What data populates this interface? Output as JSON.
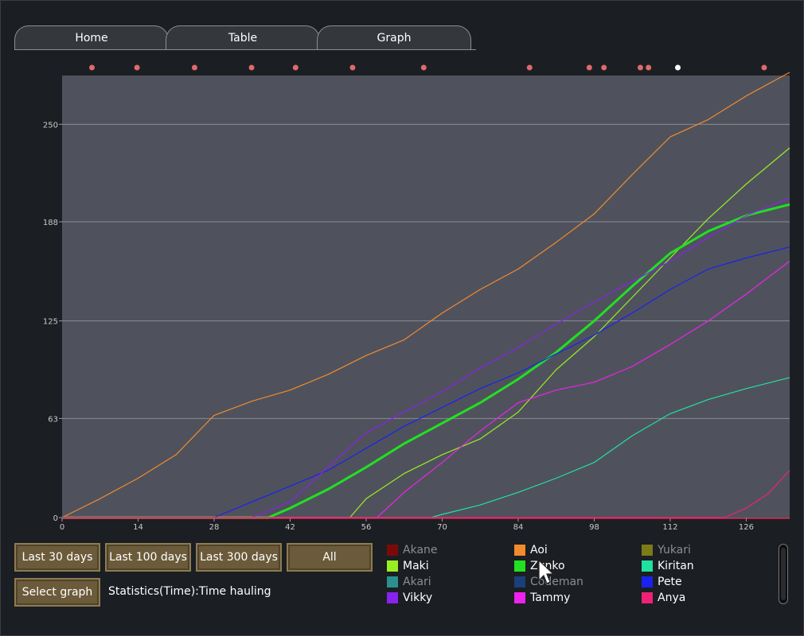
{
  "tabs": [
    {
      "label": "Home",
      "left": 18
    },
    {
      "label": "Table",
      "left": 208
    },
    {
      "label": "Graph",
      "left": 398
    }
  ],
  "buttons": {
    "last30": "Last 30 days",
    "last100": "Last 100 days",
    "last300": "Last 300 days",
    "all": "All",
    "select_graph": "Select graph"
  },
  "status": "Statistics(Time):Time hauling",
  "chart_data": {
    "type": "line",
    "xlim": [
      0,
      134
    ],
    "ylim": [
      0,
      281
    ],
    "x_ticks": [
      0,
      14,
      28,
      42,
      56,
      70,
      84,
      98,
      112,
      126
    ],
    "y_ticks": [
      0,
      63,
      125,
      188,
      250
    ],
    "grid": true,
    "event_days": [
      5.5,
      13.8,
      24.4,
      34.9,
      43,
      53.5,
      66.6,
      86.1,
      97.1,
      99.8,
      106.5,
      108,
      113.4,
      129.3
    ],
    "highlight_event_index": 12,
    "series": [
      {
        "name": "Akane",
        "color": "#7a0a0a",
        "enabled": false,
        "points": []
      },
      {
        "name": "Aoi",
        "color": "#f28a2e",
        "enabled": true,
        "points": [
          [
            0,
            0
          ],
          [
            7,
            12
          ],
          [
            14,
            25
          ],
          [
            21,
            40
          ],
          [
            28,
            65
          ],
          [
            35,
            74
          ],
          [
            42,
            81
          ],
          [
            49,
            91
          ],
          [
            56,
            103
          ],
          [
            63,
            113
          ],
          [
            70,
            130
          ],
          [
            77,
            145
          ],
          [
            84,
            158
          ],
          [
            91,
            175
          ],
          [
            98,
            193
          ],
          [
            105,
            218
          ],
          [
            112,
            242
          ],
          [
            119,
            253
          ],
          [
            126,
            268
          ],
          [
            134,
            283
          ]
        ]
      },
      {
        "name": "Yukari",
        "color": "#7d7a18",
        "enabled": false,
        "points": []
      },
      {
        "name": "Maki",
        "color": "#99ee22",
        "enabled": true,
        "points": [
          [
            0,
            0
          ],
          [
            53,
            0
          ],
          [
            54,
            4
          ],
          [
            56,
            12
          ],
          [
            63,
            28
          ],
          [
            70,
            40
          ],
          [
            77,
            50
          ],
          [
            84,
            67
          ],
          [
            91,
            94
          ],
          [
            98,
            115
          ],
          [
            105,
            140
          ],
          [
            112,
            165
          ],
          [
            119,
            190
          ],
          [
            126,
            212
          ],
          [
            134,
            235
          ]
        ]
      },
      {
        "name": "Zunko",
        "color": "#22e022",
        "enabled": true,
        "bold": true,
        "points": [
          [
            0,
            0
          ],
          [
            38,
            0
          ],
          [
            42,
            6
          ],
          [
            49,
            18
          ],
          [
            56,
            32
          ],
          [
            63,
            47
          ],
          [
            70,
            60
          ],
          [
            77,
            73
          ],
          [
            84,
            88
          ],
          [
            91,
            105
          ],
          [
            98,
            125
          ],
          [
            105,
            147
          ],
          [
            112,
            168
          ],
          [
            119,
            182
          ],
          [
            126,
            192
          ],
          [
            134,
            199
          ]
        ]
      },
      {
        "name": "Kiritan",
        "color": "#22e0a0",
        "enabled": true,
        "points": [
          [
            0,
            0
          ],
          [
            68,
            0
          ],
          [
            70,
            2
          ],
          [
            77,
            8
          ],
          [
            84,
            16
          ],
          [
            91,
            25
          ],
          [
            98,
            35
          ],
          [
            105,
            52
          ],
          [
            112,
            66
          ],
          [
            119,
            75
          ],
          [
            126,
            82
          ],
          [
            134,
            89
          ]
        ]
      },
      {
        "name": "Akari",
        "color": "#2b8f8f",
        "enabled": false,
        "points": []
      },
      {
        "name": "Codeman",
        "color": "#1a3f7a",
        "enabled": false,
        "points": []
      },
      {
        "name": "Pete",
        "color": "#1a22ee",
        "enabled": true,
        "points": [
          [
            0,
            0
          ],
          [
            28,
            0
          ],
          [
            35,
            10
          ],
          [
            42,
            20
          ],
          [
            49,
            30
          ],
          [
            56,
            44
          ],
          [
            63,
            58
          ],
          [
            70,
            70
          ],
          [
            77,
            82
          ],
          [
            84,
            92
          ],
          [
            91,
            104
          ],
          [
            98,
            116
          ],
          [
            105,
            130
          ],
          [
            112,
            145
          ],
          [
            119,
            158
          ],
          [
            126,
            165
          ],
          [
            134,
            172
          ]
        ]
      },
      {
        "name": "Vikky",
        "color": "#8822ee",
        "enabled": true,
        "points": [
          [
            0,
            0
          ],
          [
            35,
            0
          ],
          [
            42,
            10
          ],
          [
            49,
            32
          ],
          [
            56,
            54
          ],
          [
            63,
            67
          ],
          [
            70,
            80
          ],
          [
            77,
            95
          ],
          [
            84,
            108
          ],
          [
            91,
            123
          ],
          [
            98,
            137
          ],
          [
            105,
            150
          ],
          [
            112,
            163
          ],
          [
            119,
            178
          ],
          [
            126,
            192
          ],
          [
            134,
            203
          ]
        ]
      },
      {
        "name": "Tammy",
        "color": "#ee22ee",
        "enabled": true,
        "points": [
          [
            0,
            0
          ],
          [
            58,
            0
          ],
          [
            63,
            16
          ],
          [
            70,
            35
          ],
          [
            77,
            55
          ],
          [
            84,
            73
          ],
          [
            91,
            81
          ],
          [
            98,
            86
          ],
          [
            105,
            96
          ],
          [
            112,
            110
          ],
          [
            119,
            125
          ],
          [
            126,
            142
          ],
          [
            134,
            163
          ]
        ]
      },
      {
        "name": "Anya",
        "color": "#ee2277",
        "enabled": true,
        "points": [
          [
            0,
            0
          ],
          [
            122,
            0
          ],
          [
            126,
            6
          ],
          [
            130,
            15
          ],
          [
            134,
            30
          ]
        ]
      }
    ]
  }
}
